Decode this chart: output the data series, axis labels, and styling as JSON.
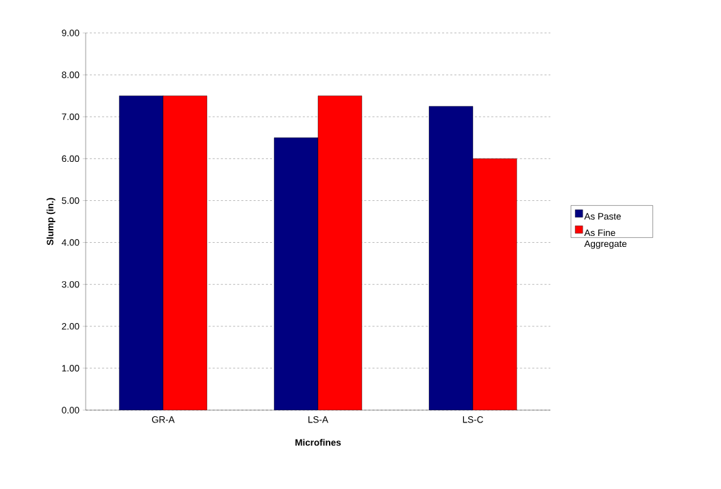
{
  "chart_data": {
    "type": "bar",
    "xlabel": "Microfines",
    "ylabel": "Slump (in.)",
    "categories": [
      "GR-A",
      "LS-A",
      "LS-C"
    ],
    "series": [
      {
        "name": "As Paste",
        "color": "#000080",
        "values": [
          7.5,
          6.5,
          7.25
        ]
      },
      {
        "name": "As Fine Aggregate",
        "color": "#ff0000",
        "values": [
          7.5,
          7.5,
          6.0
        ]
      }
    ],
    "ylim": [
      0,
      9
    ],
    "yticks": [
      {
        "value": 0,
        "label": "0.00"
      },
      {
        "value": 1,
        "label": "1.00"
      },
      {
        "value": 2,
        "label": "2.00"
      },
      {
        "value": 3,
        "label": "3.00"
      },
      {
        "value": 4,
        "label": "4.00"
      },
      {
        "value": 5,
        "label": "5.00"
      },
      {
        "value": 6,
        "label": "6.00"
      },
      {
        "value": 7,
        "label": "7.00"
      },
      {
        "value": 8,
        "label": "8.00"
      },
      {
        "value": 9,
        "label": "9.00"
      }
    ],
    "grid": "y",
    "legend": "right"
  }
}
